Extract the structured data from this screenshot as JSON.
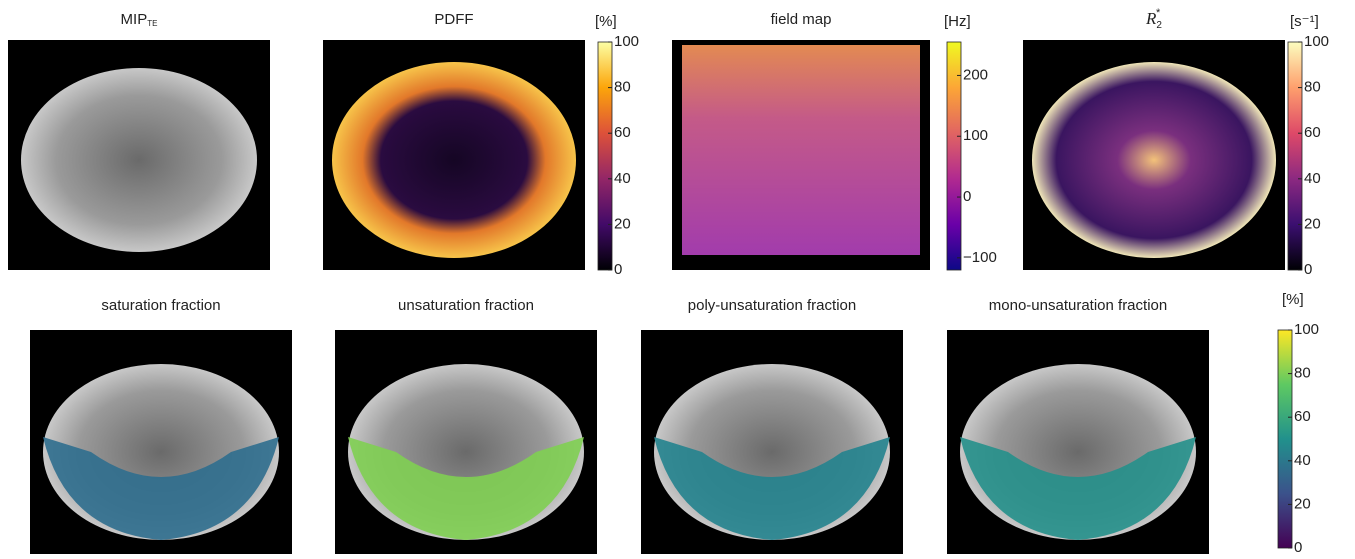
{
  "panels": [
    {
      "title": "MIP",
      "subscript": "TE"
    },
    {
      "title": "PDFF"
    },
    {
      "title": "field map"
    },
    {
      "title": "R",
      "subscript": "2",
      "superscript": "*"
    },
    {
      "title": "saturation fraction"
    },
    {
      "title": "unsaturation fraction"
    },
    {
      "title": "poly-unsaturation fraction"
    },
    {
      "title": "mono-unsaturation fraction"
    }
  ],
  "colorbars": [
    {
      "unit": "[%]",
      "colormap": "inferno",
      "lim": [
        0,
        100
      ],
      "ticks": [
        0,
        20,
        40,
        60,
        80,
        100
      ]
    },
    {
      "unit": "[Hz]",
      "colormap": "plasma",
      "lim": [
        -120,
        255
      ],
      "ticks": [
        {
          "value": -100,
          "label": "−100"
        },
        0,
        100,
        200
      ]
    },
    {
      "unit": "[s⁻¹]",
      "colormap": "magma",
      "lim": [
        0,
        100
      ],
      "ticks": [
        0,
        20,
        40,
        60,
        80,
        100
      ]
    },
    {
      "unit": "[%]",
      "colormap": "viridis",
      "lim": [
        0,
        100
      ],
      "ticks": [
        0,
        20,
        40,
        60,
        80,
        100
      ]
    }
  ]
}
